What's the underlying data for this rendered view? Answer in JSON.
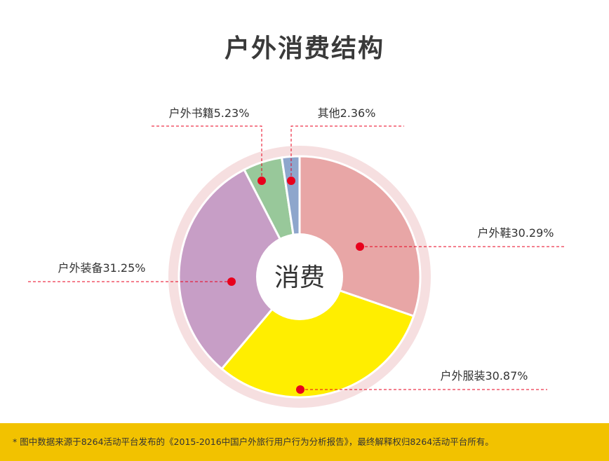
{
  "title": "户外消费结构",
  "chart_data": {
    "type": "pie",
    "center_label": "消费",
    "slices": [
      {
        "name": "户外鞋",
        "value": 30.29,
        "label": "户外鞋30.29%",
        "color": "#e8a6a6"
      },
      {
        "name": "户外服装",
        "value": 30.87,
        "label": "户外服装30.87%",
        "color": "#ffee00"
      },
      {
        "name": "户外装备",
        "value": 31.25,
        "label": "户外装备31.25%",
        "color": "#c79ec6"
      },
      {
        "name": "户外书籍",
        "value": 5.23,
        "label": "户外书籍5.23%",
        "color": "#98c89a"
      },
      {
        "name": "其他",
        "value": 2.36,
        "label": "其他2.36%",
        "color": "#8ea6cc"
      }
    ]
  },
  "footer_note": "* 图中数据来源于8264活动平台发布的《2015-2016中国户外旅行用户行为分析报告》，最终解释权归8264活动平台所有。",
  "colors": {
    "footer": "#f2c200",
    "ring": "#f6dfe0",
    "marker": "#e8001c"
  }
}
